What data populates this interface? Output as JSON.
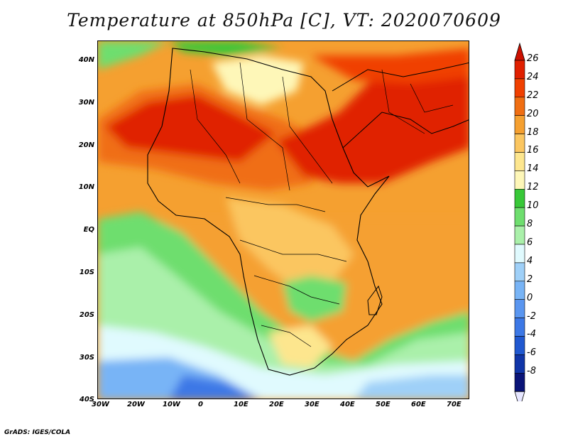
{
  "title": "Temperature at 850hPa [C], VT: 2020070609",
  "credit": "GrADS: IGES/COLA",
  "map": {
    "lat_labels": [
      "40N",
      "30N",
      "20N",
      "10N",
      "EQ",
      "10S",
      "20S",
      "30S",
      "40S"
    ],
    "lon_labels": [
      "30W",
      "20W",
      "10W",
      "0",
      "10E",
      "20E",
      "30E",
      "40E",
      "50E",
      "60E",
      "70E"
    ]
  },
  "colorbar": {
    "labels": [
      "26",
      "24",
      "22",
      "20",
      "18",
      "16",
      "14",
      "12",
      "10",
      "8",
      "6",
      "4",
      "2",
      "0",
      "-2",
      "-4",
      "-6",
      "-8"
    ],
    "colors": [
      "#e02000",
      "#f04000",
      "#f06e12",
      "#f5a030",
      "#fbc660",
      "#fde68e",
      "#fef7b8",
      "#38c838",
      "#6ede6e",
      "#aaf0aa",
      "#e0fafe",
      "#9fd0f8",
      "#78b4f6",
      "#5a96f0",
      "#3c78e6",
      "#2058d0",
      "#1035a8",
      "#0a1478"
    ],
    "top_arrow_color": "#cc1000",
    "bottom_arrow_color": "#e6e6ff"
  }
}
